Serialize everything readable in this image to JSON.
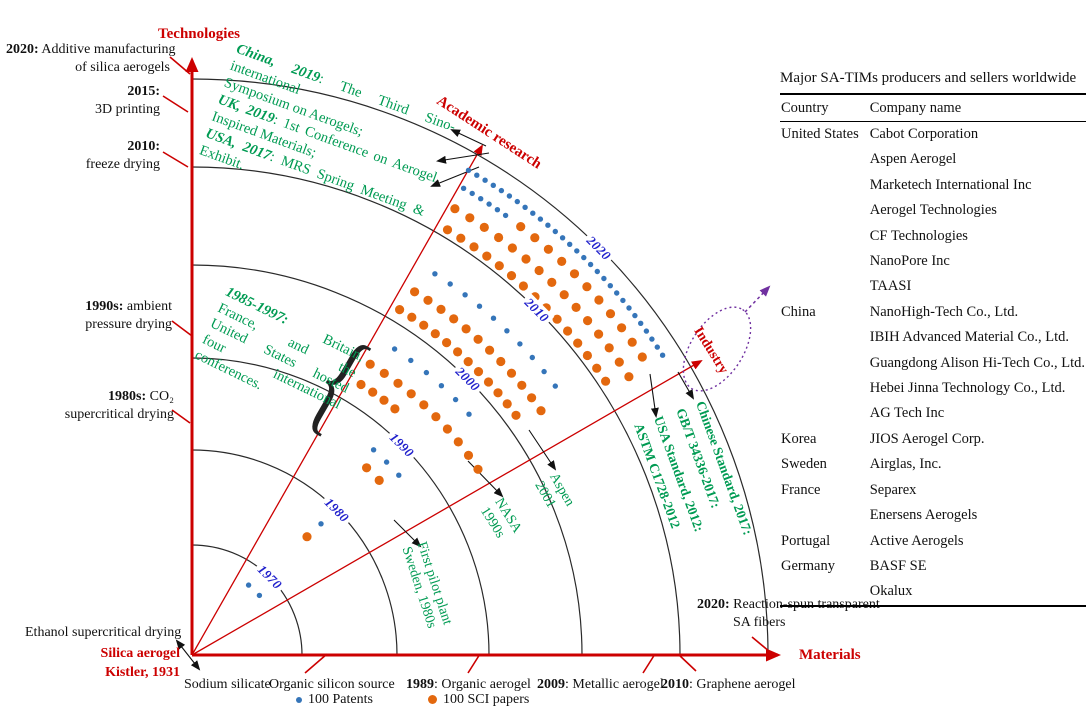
{
  "figure": {
    "axis_labels": {
      "technologies": "Technologies",
      "materials": "Materials",
      "academic": "Academic research",
      "industry": "Industry"
    },
    "origin_label": {
      "line1": "Silica aerogel",
      "line2": "Kistler, 1931"
    },
    "brace_glyph": "{",
    "tech_milestones": [
      {
        "year": "2020:",
        "rest": " Additive manufacturing",
        "line2": "of silica aerogels"
      },
      {
        "year": "2015:",
        "rest": "",
        "line2": "3D printing"
      },
      {
        "year": "2010:",
        "rest": "",
        "line2": "freeze drying"
      },
      {
        "year": "1990s:",
        "rest": " ambient",
        "line2": "pressure drying"
      },
      {
        "year": "1980s:",
        "rest": " CO₂",
        "line2": "supercritical drying"
      },
      {
        "year": "",
        "rest": "Ethanol supercritical drying",
        "line2": ""
      }
    ],
    "material_milestones": [
      {
        "year": "",
        "rest": "Sodium silicate"
      },
      {
        "year": "",
        "rest": "Organic silicon source"
      },
      {
        "year": "1989",
        "rest": ": Organic aerogel"
      },
      {
        "year": "2009",
        "rest": ": Metallic aerogel"
      },
      {
        "year": "2010",
        "rest": ": Graphene aerogel"
      },
      {
        "year": "2020:",
        "rest": " Reaction-spun transparent",
        "line2": "SA fibers"
      }
    ],
    "conferences_top": {
      "lines": [
        {
          "b": "China, 2019",
          "t": ": The Third Sino-international",
          "just": true
        },
        {
          "b": "",
          "t": "Symposium on Aerogels;",
          "just": false
        },
        {
          "b": "UK, 2019",
          "t": ": 1st Conference on Aerogel",
          "just": true
        },
        {
          "b": "",
          "t": "Inspired Materials;",
          "just": false
        },
        {
          "b": "USA, 2017",
          "t": ": MRS Spring Meeting &",
          "just": true
        },
        {
          "b": "",
          "t": "Exhibit.",
          "just": false
        }
      ]
    },
    "conferences_1985": {
      "lines": [
        {
          "b": "1985-1997:",
          "t": " Britain,",
          "just": true
        },
        {
          "b": "",
          "t": "France, and the",
          "just": true
        },
        {
          "b": "",
          "t": "United States hosted",
          "just": true
        },
        {
          "b": "",
          "t": "four international",
          "just": true
        },
        {
          "b": "",
          "t": "conferences.",
          "just": false
        }
      ]
    },
    "industry_notes": [
      {
        "l1": "NASA",
        "l2": "1990s"
      },
      {
        "l1": "Aspen",
        "l2": "2001"
      },
      {
        "l1": "First pilot plant",
        "l2": "Sweden, 1980s"
      }
    ],
    "standards": [
      {
        "l1": "Chinese Standard, 2017:",
        "l2": "GB/T 34336-2017:"
      },
      {
        "l1": "USA Standard, 2012:",
        "l2": "ASTM C1728-2012"
      }
    ],
    "legend": {
      "patents": "100 Patents",
      "sci_papers": "100 SCI papers"
    }
  },
  "table": {
    "title": "Major SA-TIMs producers and sellers worldwide",
    "columns": [
      "Country",
      "Company name"
    ],
    "rows": [
      {
        "country": "United States",
        "company": "Cabot Corporation"
      },
      {
        "country": "",
        "company": "Aspen Aerogel"
      },
      {
        "country": "",
        "company": "Marketech International Inc"
      },
      {
        "country": "",
        "company": "Aerogel Technologies"
      },
      {
        "country": "",
        "company": "CF Technologies"
      },
      {
        "country": "",
        "company": "NanoPore Inc"
      },
      {
        "country": "",
        "company": "TAASI"
      },
      {
        "country": "China",
        "company": "NanoHigh-Tech Co., Ltd."
      },
      {
        "country": "",
        "company": "IBIH Advanced Material Co., Ltd."
      },
      {
        "country": "",
        "company": "Guangdong Alison Hi-Tech Co., Ltd."
      },
      {
        "country": "",
        "company": "Hebei Jinna Technology Co., Ltd."
      },
      {
        "country": "",
        "company": "AG Tech Inc"
      },
      {
        "country": "Korea",
        "company": "JIOS Aerogel Corp."
      },
      {
        "country": "Sweden",
        "company": "Airglas, Inc."
      },
      {
        "country": "France",
        "company": "Separex"
      },
      {
        "country": "",
        "company": "Enersens Aerogels"
      },
      {
        "country": "Portugal",
        "company": "Active Aerogels"
      },
      {
        "country": "Germany",
        "company": "BASF SE"
      },
      {
        "country": "",
        "company": "Okalux"
      }
    ]
  },
  "chart_data": {
    "type": "scatter",
    "subtype": "quarter-polar-dot-timeline",
    "origin": [
      192,
      655
    ],
    "axis_angles_deg": {
      "academic_research": 60.5,
      "industry": 30.1
    },
    "rings": [
      {
        "year": "1970",
        "r": 110
      },
      {
        "year": "1980",
        "r": 205
      },
      {
        "year": "1990",
        "r": 297
      },
      {
        "year": "2000",
        "r": 390
      },
      {
        "year": "2010",
        "r": 488
      },
      {
        "year": "2020",
        "r": 576
      }
    ],
    "series": {
      "patents": {
        "label": "100 Patents",
        "color": "#3575b9",
        "dot_radius": 2.7,
        "unit_per_dot": 100
      },
      "sci_papers": {
        "label": "100 SCI papers",
        "color": "#e3680e",
        "dot_radius": 4.6,
        "unit_per_dot": 100
      }
    },
    "dot_rows": [
      {
        "s": "patents",
        "r": 90,
        "a1": 51,
        "a2": 41.5,
        "n": 2
      },
      {
        "s": "patents",
        "r": 184,
        "a1": 45.5,
        "a2": 45.5,
        "n": 1
      },
      {
        "s": "sci_papers",
        "r": 165,
        "a1": 45.8,
        "a2": 45.8,
        "n": 1
      },
      {
        "s": "patents",
        "r": 274,
        "a1": 48.5,
        "a2": 41,
        "n": 3
      },
      {
        "s": "sci_papers",
        "r": 256,
        "a1": 47,
        "a2": 43,
        "n": 2
      },
      {
        "s": "patents",
        "r": 367,
        "a1": 56.5,
        "a2": 41,
        "n": 6
      },
      {
        "s": "sci_papers",
        "r": 341,
        "a1": 58.5,
        "a2": 33,
        "n": 10
      },
      {
        "s": "sci_papers",
        "r": 319,
        "a1": 58,
        "a2": 50.5,
        "n": 4
      },
      {
        "s": "patents",
        "r": 452,
        "a1": 57.5,
        "a2": 36.5,
        "n": 10
      },
      {
        "s": "sci_papers",
        "r": 426,
        "a1": 58.5,
        "a2": 35,
        "n": 12
      },
      {
        "s": "sci_papers",
        "r": 403,
        "a1": 59,
        "a2": 36.5,
        "n": 12
      },
      {
        "s": "patents",
        "r": 558,
        "a1": 60.3,
        "a2": 32.5,
        "n": 29
      },
      {
        "s": "patents",
        "r": 540,
        "a1": 59.8,
        "a2": 54.5,
        "n": 6
      },
      {
        "s": "sci_papers",
        "r": 540,
        "a1": 52.5,
        "a2": 33.5,
        "n": 11
      },
      {
        "s": "sci_papers",
        "r": 518,
        "a1": 59.5,
        "a2": 32.5,
        "n": 15
      },
      {
        "s": "sci_papers",
        "r": 496,
        "a1": 59,
        "a2": 33.5,
        "n": 15
      }
    ]
  }
}
